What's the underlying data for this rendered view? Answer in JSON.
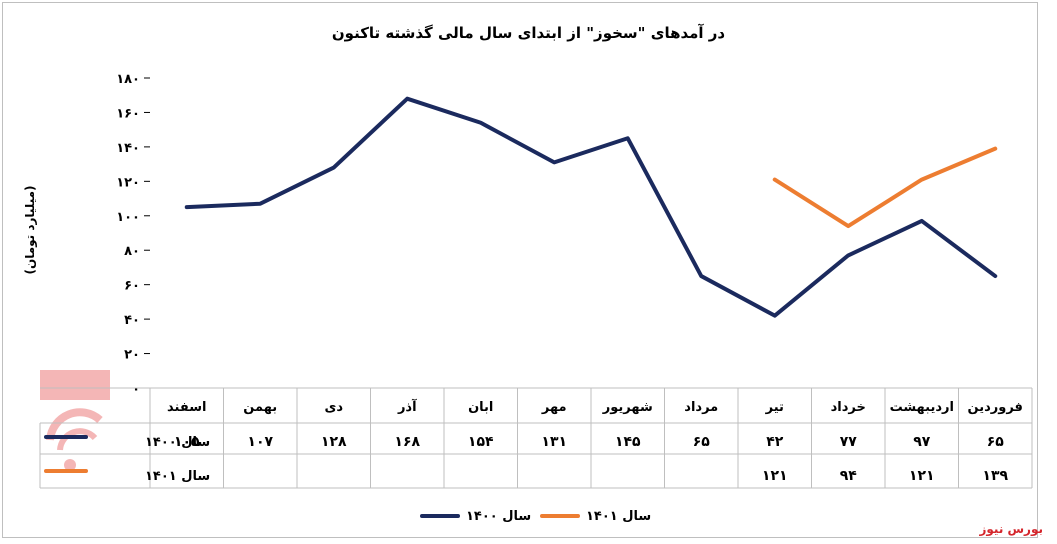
{
  "title": "در آمدهای \"سخوز\" از ابتدای سال مالی گذشته تاکنون",
  "brand": "بورس نیوز",
  "chart_data": {
    "type": "line",
    "title": "در آمدهای \"سخوز\" از ابتدای سال مالی گذشته تاکنون",
    "ylabel": "(میلیارد تومان)",
    "ylim": [
      0,
      180
    ],
    "yticks": [
      "۰",
      "۲۰",
      "۴۰",
      "۶۰",
      "۸۰",
      "۱۰۰",
      "۱۲۰",
      "۱۴۰",
      "۱۶۰",
      "۱۸۰"
    ],
    "categories": [
      "فروردین",
      "اردیبهشت",
      "خرداد",
      "تیر",
      "مرداد",
      "شهریور",
      "مهر",
      "ابان",
      "آذر",
      "دی",
      "بهمن",
      "اسفند"
    ],
    "series": [
      {
        "name": "سال ۱۴۰۰",
        "color": "#1b2a5e",
        "values": [
          65,
          97,
          77,
          42,
          65,
          145,
          131,
          154,
          168,
          128,
          107,
          105
        ],
        "labels": [
          "۶۵",
          "۹۷",
          "۷۷",
          "۴۲",
          "۶۵",
          "۱۴۵",
          "۱۳۱",
          "۱۵۴",
          "۱۶۸",
          "۱۲۸",
          "۱۰۷",
          "۱۰۵"
        ]
      },
      {
        "name": "سال ۱۴۰۱",
        "color": "#ed7d31",
        "values": [
          139,
          121,
          94,
          121,
          null,
          null,
          null,
          null,
          null,
          null,
          null,
          null
        ],
        "labels": [
          "۱۳۹",
          "۱۲۱",
          "۹۴",
          "۱۲۱",
          "",
          "",
          "",
          "",
          "",
          "",
          "",
          ""
        ]
      }
    ],
    "grid": false,
    "legend": "bottom"
  }
}
